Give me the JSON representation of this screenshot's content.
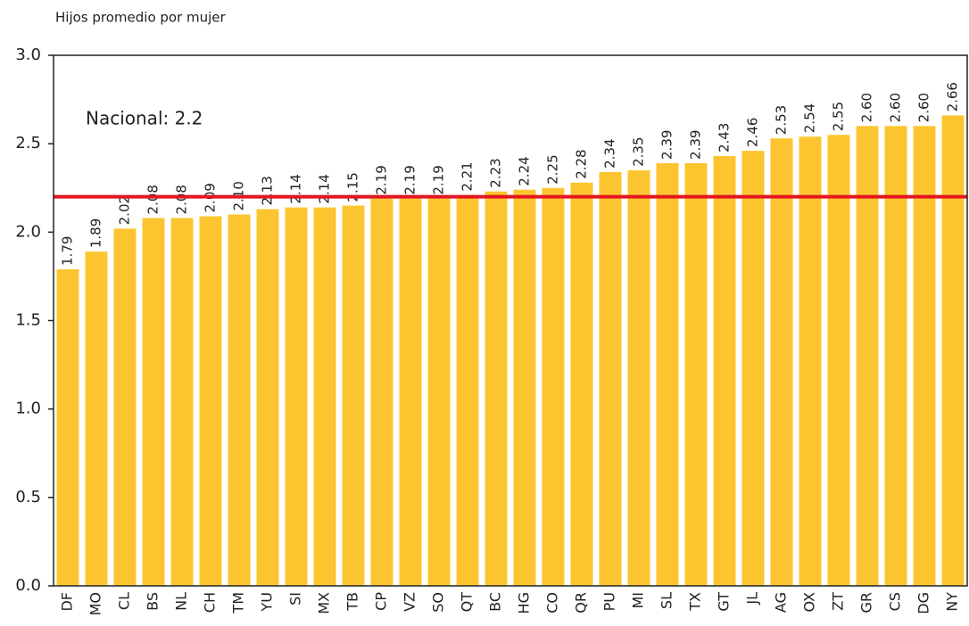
{
  "chart_data": {
    "type": "bar",
    "y_label": "Hijos promedio por mujer",
    "categories": [
      "DF",
      "MO",
      "CL",
      "BS",
      "NL",
      "CH",
      "TM",
      "YU",
      "SI",
      "MX",
      "TB",
      "CP",
      "VZ",
      "SO",
      "QT",
      "BC",
      "HG",
      "CO",
      "QR",
      "PU",
      "MI",
      "SL",
      "TX",
      "GT",
      "JL",
      "AG",
      "OX",
      "ZT",
      "GR",
      "CS",
      "DG",
      "NY"
    ],
    "values": [
      1.79,
      1.89,
      2.02,
      2.08,
      2.08,
      2.09,
      2.1,
      2.13,
      2.14,
      2.14,
      2.15,
      2.19,
      2.19,
      2.19,
      2.21,
      2.23,
      2.24,
      2.25,
      2.28,
      2.34,
      2.35,
      2.39,
      2.39,
      2.43,
      2.46,
      2.53,
      2.54,
      2.55,
      2.6,
      2.6,
      2.6,
      2.66
    ],
    "value_labels": [
      "1.79",
      "1.89",
      "2.02",
      "2.08",
      "2.08",
      "2.09",
      "2.10",
      "2.13",
      "2.14",
      "2.14",
      "2.15",
      "2.19",
      "2.19",
      "2.19",
      "2.21",
      "2.23",
      "2.24",
      "2.25",
      "2.28",
      "2.34",
      "2.35",
      "2.39",
      "2.39",
      "2.43",
      "2.46",
      "2.53",
      "2.54",
      "2.55",
      "2.60",
      "2.60",
      "2.60",
      "2.66"
    ],
    "color": "#fcc530",
    "ylim": [
      0,
      3
    ],
    "yticks": [
      {
        "value": 0,
        "label": "0.0"
      },
      {
        "value": 0.5,
        "label": "0.5"
      },
      {
        "value": 1,
        "label": "1.0"
      },
      {
        "value": 1.5,
        "label": "1.5"
      },
      {
        "value": 2,
        "label": "2.0"
      },
      {
        "value": 2.5,
        "label": "2.5"
      },
      {
        "value": 3,
        "label": "3.0"
      }
    ],
    "grid": false,
    "reference_line": {
      "value": 2.2,
      "label": "Nacional: 2.2",
      "color": "#e3161f"
    }
  }
}
